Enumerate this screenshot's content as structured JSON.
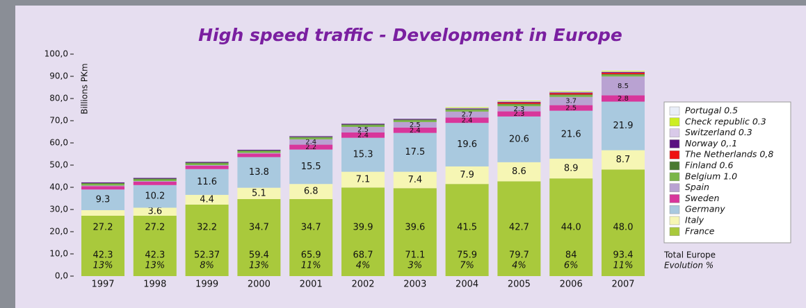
{
  "chart_data": {
    "type": "stacked_bar",
    "title": "High speed traffic - Development in Europe",
    "y_label": "Billions PKm",
    "categories": [
      "1997",
      "1998",
      "1999",
      "2000",
      "2001",
      "2002",
      "2003",
      "2004",
      "2005",
      "2006",
      "2007"
    ],
    "ylim": [
      0,
      100
    ],
    "yticks": [
      {
        "value": 0,
        "label": "0,0"
      },
      {
        "value": 10,
        "label": "10,0"
      },
      {
        "value": 20,
        "label": "20,0"
      },
      {
        "value": 30,
        "label": "30,0"
      },
      {
        "value": 40,
        "label": "40,0"
      },
      {
        "value": 50,
        "label": "50,0"
      },
      {
        "value": 60,
        "label": "60,0"
      },
      {
        "value": 70,
        "label": "70,0"
      },
      {
        "value": 80,
        "label": "80,0"
      },
      {
        "value": 90,
        "label": "90,0"
      },
      {
        "value": 100,
        "label": "100,0"
      }
    ],
    "series": [
      {
        "name": "France",
        "color": "#a9c93c",
        "values": [
          27.2,
          27.2,
          32.2,
          34.7,
          34.7,
          39.9,
          39.6,
          41.5,
          42.7,
          44.0,
          48.0
        ],
        "value_labels": [
          "27.2",
          "27.2",
          "32.2",
          "34.7",
          "34.7",
          "39.9",
          "39.6",
          "41.5",
          "42.7",
          "44.0",
          "48.0"
        ]
      },
      {
        "name": "Italy",
        "color": "#f6f6b4",
        "values": [
          2.5,
          3.6,
          4.4,
          5.1,
          6.8,
          7.1,
          7.4,
          7.9,
          8.6,
          8.9,
          8.7
        ],
        "value_labels": [
          null,
          "3.6",
          "4.4",
          "5.1",
          "6.8",
          "7.1",
          "7.4",
          "7.9",
          "8.6",
          "8.9",
          "8.7"
        ]
      },
      {
        "name": "Germany",
        "color": "#a9c9df",
        "values": [
          9.3,
          10.2,
          11.6,
          13.8,
          15.5,
          15.3,
          17.5,
          19.6,
          20.6,
          21.6,
          21.9
        ],
        "value_labels": [
          "9.3",
          "10.2",
          "11.6",
          "13.8",
          "15.5",
          "15.3",
          "17.5",
          "19.6",
          "20.6",
          "21.6",
          "21.9"
        ]
      },
      {
        "name": "Sweden",
        "color": "#d8369b",
        "values": [
          1.5,
          1.5,
          1.5,
          1.6,
          2.2,
          2.4,
          2.4,
          2.4,
          2.3,
          2.5,
          2.8
        ],
        "value_labels": [
          null,
          null,
          null,
          null,
          "2.2",
          "2.4",
          "2.4",
          "2.4",
          "2.3",
          "2.5",
          "2.8"
        ]
      },
      {
        "name": "Spain",
        "color": "#b9a2d2",
        "values": [
          0.3,
          0.3,
          0.3,
          0.3,
          2.4,
          2.5,
          2.5,
          2.7,
          2.3,
          3.7,
          8.5
        ],
        "value_labels": [
          null,
          null,
          null,
          null,
          "2.4",
          "2.5",
          "2.5",
          "2.7",
          "2.3",
          "3.7",
          "8.5"
        ]
      },
      {
        "name": "Belgium 1.0",
        "color": "#7ab648",
        "values": [
          0.8,
          0.8,
          0.8,
          0.8,
          0.8,
          0.8,
          0.8,
          0.8,
          0.8,
          0.8,
          0.8
        ]
      },
      {
        "name": "Finland 0.6",
        "color": "#4b7a31",
        "values": [
          0.3,
          0.3,
          0.3,
          0.3,
          0.3,
          0.3,
          0.3,
          0.3,
          0.3,
          0.3,
          0.3
        ]
      },
      {
        "name": "The Netherlands 0,8",
        "color": "#ee1111",
        "values": [
          0,
          0,
          0,
          0,
          0,
          0,
          0,
          0,
          0.6,
          0.6,
          0.6
        ]
      },
      {
        "name": "Norway 0,.1",
        "color": "#5b1182",
        "values": [
          0.3,
          0.3,
          0.3,
          0.3,
          0.3,
          0.3,
          0.3,
          0.3,
          0.3,
          0.3,
          0.3
        ]
      },
      {
        "name": "Switzerland 0.3",
        "color": "#d9cae9",
        "values": [
          0.3,
          0.3,
          0.3,
          0.3,
          0.3,
          0.3,
          0.3,
          0.3,
          0.3,
          0.3,
          0.3
        ]
      },
      {
        "name": "Check republic 0.3",
        "color": "#ccee22",
        "values": [
          0,
          0,
          0,
          0,
          0,
          0,
          0,
          0.3,
          0.3,
          0.3,
          0.3
        ]
      },
      {
        "name": "Portugal 0.5",
        "color": "#e9eef8",
        "values": [
          0,
          0,
          0,
          0,
          0,
          0,
          0.3,
          0.3,
          0.3,
          0.3,
          0.3
        ]
      }
    ],
    "totals": {
      "name": "Total Europe",
      "values": [
        42.3,
        42.3,
        52.37,
        59.4,
        65.9,
        68.7,
        71.1,
        75.9,
        79.7,
        84,
        93.4
      ]
    },
    "evolution": {
      "name": "Evolution %",
      "values": [
        13,
        13,
        8,
        13,
        11,
        4,
        3,
        7,
        4,
        6,
        11
      ],
      "value_labels": [
        "13%",
        "13%",
        "8%",
        "13%",
        "11%",
        "4%",
        "3%",
        "7%",
        "4%",
        "6%",
        "11%"
      ]
    }
  }
}
